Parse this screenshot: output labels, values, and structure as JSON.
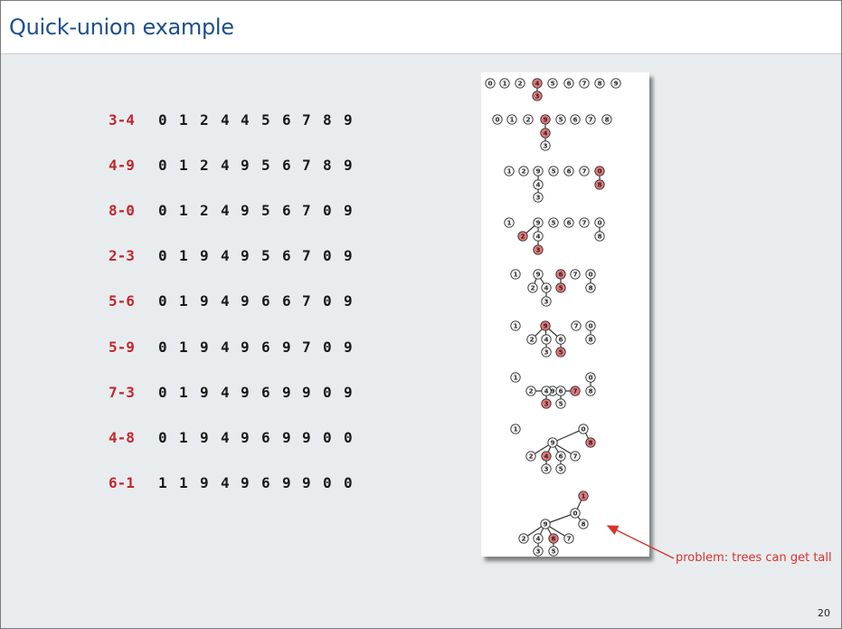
{
  "title": "Quick-union example",
  "rows": [
    {
      "op": "3-4",
      "ids": [
        "0",
        "1",
        "2",
        "4",
        "4",
        "5",
        "6",
        "7",
        "8",
        "9"
      ]
    },
    {
      "op": "4-9",
      "ids": [
        "0",
        "1",
        "2",
        "4",
        "9",
        "5",
        "6",
        "7",
        "8",
        "9"
      ]
    },
    {
      "op": "8-0",
      "ids": [
        "0",
        "1",
        "2",
        "4",
        "9",
        "5",
        "6",
        "7",
        "0",
        "9"
      ]
    },
    {
      "op": "2-3",
      "ids": [
        "0",
        "1",
        "9",
        "4",
        "9",
        "5",
        "6",
        "7",
        "0",
        "9"
      ]
    },
    {
      "op": "5-6",
      "ids": [
        "0",
        "1",
        "9",
        "4",
        "9",
        "6",
        "6",
        "7",
        "0",
        "9"
      ]
    },
    {
      "op": "5-9",
      "ids": [
        "0",
        "1",
        "9",
        "4",
        "9",
        "6",
        "9",
        "7",
        "0",
        "9"
      ]
    },
    {
      "op": "7-3",
      "ids": [
        "0",
        "1",
        "9",
        "4",
        "9",
        "6",
        "9",
        "9",
        "0",
        "9"
      ]
    },
    {
      "op": "4-8",
      "ids": [
        "0",
        "1",
        "9",
        "4",
        "9",
        "6",
        "9",
        "9",
        "0",
        "0"
      ]
    },
    {
      "op": "6-1",
      "ids": [
        "1",
        "1",
        "9",
        "4",
        "9",
        "6",
        "9",
        "9",
        "0",
        "0"
      ]
    }
  ],
  "callout": "problem: trees can get tall",
  "page_number": "20",
  "colors": {
    "title": "#1d4f8c",
    "op": "#c1272d",
    "highlight_node": "#e8777a",
    "callout": "#d8322c"
  }
}
